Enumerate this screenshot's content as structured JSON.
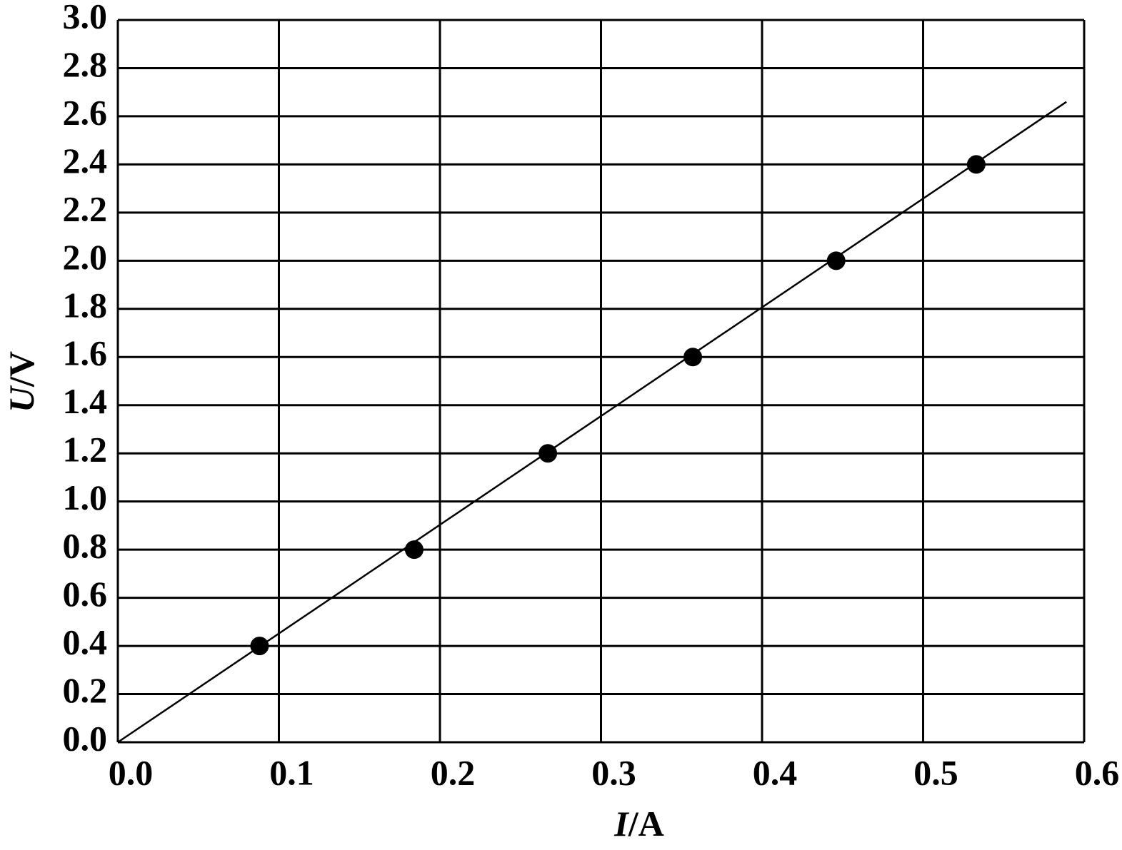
{
  "chart_data": {
    "type": "scatter",
    "x_label": "I/A",
    "y_label": "U/V",
    "xlim": [
      0,
      0.6
    ],
    "ylim": [
      0,
      3.0
    ],
    "xticks": [
      {
        "value": 0,
        "label": "0.0"
      },
      0.1,
      0.2,
      0.3,
      0.4,
      0.5,
      0.6
    ],
    "yticks": [
      {
        "value": 0,
        "label": "0.0"
      },
      0.2,
      0.4,
      0.6,
      0.8,
      {
        "value": 1,
        "label": "1.0"
      },
      1.2,
      1.4,
      1.6,
      1.8,
      {
        "value": 2,
        "label": "2.0"
      },
      2.2,
      2.4,
      2.6,
      2.8,
      {
        "value": 3,
        "label": "3.0"
      }
    ],
    "grid": true,
    "series": [
      {
        "mode": "markers",
        "color": "#000000",
        "x": [
          0.088,
          0.184,
          0.267,
          0.357,
          0.446,
          0.533
        ],
        "values": [
          0.4,
          0.8,
          1.2,
          1.6,
          2.0,
          2.4
        ]
      },
      {
        "mode": "line",
        "color": "#000000",
        "x": [
          0,
          0.589
        ],
        "values": [
          0,
          2.66
        ]
      }
    ]
  }
}
